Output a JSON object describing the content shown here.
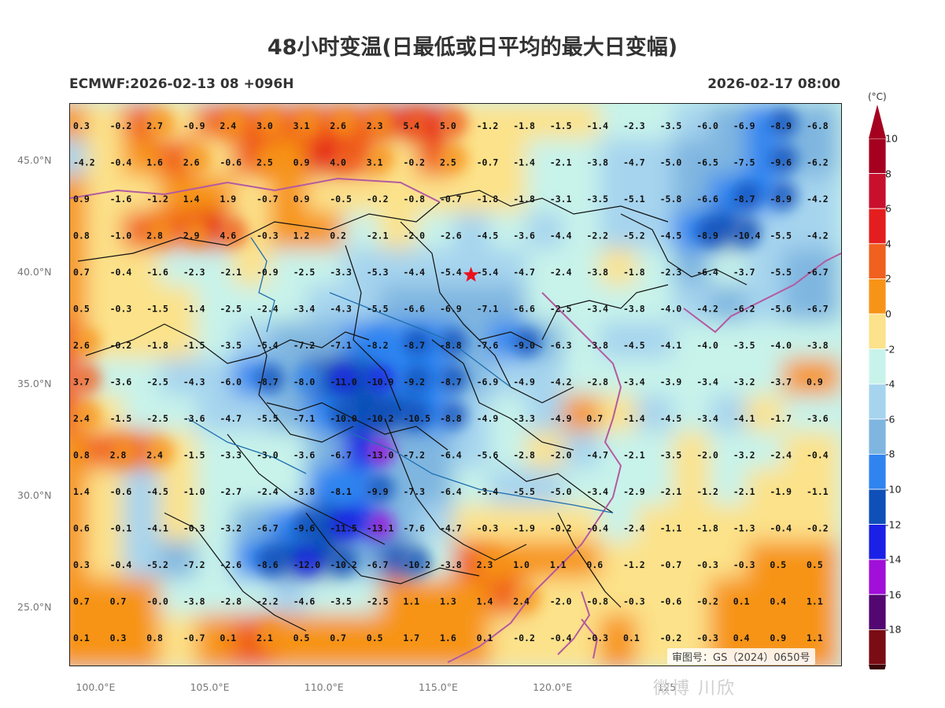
{
  "title": "48小时变温(日最低或日平均的最大日变幅)",
  "subtitle_left": "ECMWF:2026-02-13 08 +096H",
  "subtitle_right": "2026-02-17 08:00",
  "lat_labels": [
    "45.0°N",
    "40.0°N",
    "35.0°N",
    "30.0°N",
    "25.0°N"
  ],
  "lat_values": [
    45,
    40,
    35,
    30,
    25
  ],
  "lon_labels": [
    "100.0°E",
    "105.0°E",
    "110.0°E",
    "115.0°E",
    "120.0°E",
    "125"
  ],
  "lon_values": [
    100,
    105,
    110,
    115,
    120,
    125
  ],
  "colorbar": {
    "unit": "(°C)",
    "ticks": [
      "10",
      "8",
      "6",
      "4",
      "2",
      "0",
      "-2",
      "-4",
      "-6",
      "-8",
      "-10",
      "-12",
      "-14",
      "-16",
      "-18"
    ],
    "colors": [
      "#a50020",
      "#c8102e",
      "#e41e1e",
      "#f0601e",
      "#f79418",
      "#fce28a",
      "#c8f3ea",
      "#a6d4ee",
      "#7fb6e0",
      "#2f84f0",
      "#0f4fb8",
      "#1a20e6",
      "#a010d8",
      "#520870",
      "#7a0c14"
    ]
  },
  "approval_number": "审图号：GS（2024）0650号",
  "watermark": "微博 川欣",
  "marker": "star",
  "grid_rows": [
    [
      "0.3",
      "-0.2",
      "2.7",
      "-0.9",
      "2.4",
      "3.0",
      "3.1",
      "2.6",
      "2.3",
      "5.4",
      "5.0",
      "-1.2",
      "-1.8",
      "-1.5",
      "-1.4",
      "-2.3",
      "-3.5",
      "-6.0",
      "-6.9",
      "-8.9",
      "-6.8"
    ],
    [
      "-4.2",
      "-0.4",
      "1.6",
      "2.6",
      "-0.6",
      "2.5",
      "0.9",
      "4.0",
      "3.1",
      "-0.2",
      "2.5",
      "-0.7",
      "-1.4",
      "-2.1",
      "-3.8",
      "-4.7",
      "-5.0",
      "-6.5",
      "-7.5",
      "-9.6",
      "-6.2"
    ],
    [
      "0.9",
      "-1.6",
      "-1.2",
      "1.4",
      "1.9",
      "-0.7",
      "0.9",
      "-0.5",
      "-0.2",
      "-0.8",
      "-0.7",
      "-1.8",
      "-1.8",
      "-3.1",
      "-3.5",
      "-5.1",
      "-5.8",
      "-6.6",
      "-8.7",
      "-8.9",
      "-4.2"
    ],
    [
      "0.8",
      "-1.0",
      "2.8",
      "2.9",
      "4.6",
      "-0.3",
      "1.2",
      "0.2",
      "-2.1",
      "-2.0",
      "-2.6",
      "-4.5",
      "-3.6",
      "-4.4",
      "-2.2",
      "-5.2",
      "-4.5",
      "-8.9",
      "-10.4",
      "-5.5",
      "-4.2"
    ],
    [
      "0.7",
      "-0.4",
      "-1.6",
      "-2.3",
      "-2.1",
      "-0.9",
      "-2.5",
      "-3.3",
      "-5.3",
      "-4.4",
      "-5.4",
      "-5.4",
      "-4.7",
      "-2.4",
      "-3.8",
      "-1.8",
      "-2.3",
      "-6.4",
      "-3.7",
      "-5.5",
      "-6.7"
    ],
    [
      "0.5",
      "-0.3",
      "-1.5",
      "-1.4",
      "-2.5",
      "-2.4",
      "-3.4",
      "-4.3",
      "-5.5",
      "-6.6",
      "-6.9",
      "-7.1",
      "-6.6",
      "-2.5",
      "-3.4",
      "-3.8",
      "-4.0",
      "-4.2",
      "-6.2",
      "-5.6",
      "-6.7"
    ],
    [
      "2.6",
      "-0.2",
      "-1.8",
      "-1.5",
      "-3.5",
      "-5.4",
      "-7.2",
      "-7.1",
      "-8.2",
      "-8.7",
      "-8.8",
      "-7.6",
      "-9.0",
      "-6.3",
      "-3.8",
      "-4.5",
      "-4.1",
      "-4.0",
      "-3.5",
      "-4.0",
      "-3.8"
    ],
    [
      "3.7",
      "-3.6",
      "-2.5",
      "-4.3",
      "-6.0",
      "-8.7",
      "-8.0",
      "-11.0",
      "-10.9",
      "-9.2",
      "-8.7",
      "-6.9",
      "-4.9",
      "-4.2",
      "-2.8",
      "-3.4",
      "-3.9",
      "-3.4",
      "-3.2",
      "-3.7",
      "0.9"
    ],
    [
      "2.4",
      "-1.5",
      "-2.5",
      "-3.6",
      "-4.7",
      "-5.5",
      "-7.1",
      "-10.0",
      "-10.2",
      "-10.5",
      "-8.8",
      "-4.9",
      "-3.3",
      "-4.9",
      "0.7",
      "-1.4",
      "-4.5",
      "-3.4",
      "-4.1",
      "-1.7",
      "-3.6"
    ],
    [
      "0.8",
      "2.8",
      "2.4",
      "-1.5",
      "-3.3",
      "-3.0",
      "-3.6",
      "-6.7",
      "-13.0",
      "-7.2",
      "-6.4",
      "-5.6",
      "-2.8",
      "-2.0",
      "-4.7",
      "-2.1",
      "-3.5",
      "-2.0",
      "-3.2",
      "-2.4",
      "-0.4"
    ],
    [
      "1.4",
      "-0.6",
      "-4.5",
      "-1.0",
      "-2.7",
      "-2.4",
      "-3.8",
      "-8.1",
      "-9.9",
      "-7.3",
      "-6.4",
      "-3.4",
      "-5.5",
      "-5.0",
      "-3.4",
      "-2.9",
      "-2.1",
      "-1.2",
      "-2.1",
      "-1.9",
      "-1.1"
    ],
    [
      "0.6",
      "-0.1",
      "-4.1",
      "-0.3",
      "-3.2",
      "-6.7",
      "-9.6",
      "-11.5",
      "-13.1",
      "-7.6",
      "-4.7",
      "-0.3",
      "-1.9",
      "-0.2",
      "-0.4",
      "-2.4",
      "-1.1",
      "-1.8",
      "-1.3",
      "-0.4",
      "-0.2"
    ],
    [
      "0.3",
      "-0.4",
      "-5.2",
      "-7.2",
      "-2.6",
      "-8.6",
      "-12.0",
      "-10.2",
      "-6.7",
      "-10.2",
      "-3.8",
      "2.3",
      "1.0",
      "1.1",
      "0.6",
      "-1.2",
      "-0.7",
      "-0.3",
      "-0.3",
      "0.5",
      "0.5"
    ],
    [
      "0.7",
      "0.7",
      "-0.0",
      "-3.8",
      "-2.8",
      "-2.2",
      "-4.6",
      "-3.5",
      "-2.5",
      "1.1",
      "1.3",
      "1.4",
      "2.4",
      "-2.0",
      "-0.8",
      "-0.3",
      "-0.6",
      "-0.2",
      "0.1",
      "0.4",
      "1.1"
    ],
    [
      "0.1",
      "0.3",
      "0.8",
      "-0.7",
      "0.1",
      "2.1",
      "0.5",
      "0.7",
      "0.5",
      "1.7",
      "1.6",
      "0.1",
      "-0.2",
      "-0.4",
      "-0.3",
      "0.1",
      "-0.2",
      "-0.3",
      "0.4",
      "0.9",
      "1.1"
    ]
  ]
}
